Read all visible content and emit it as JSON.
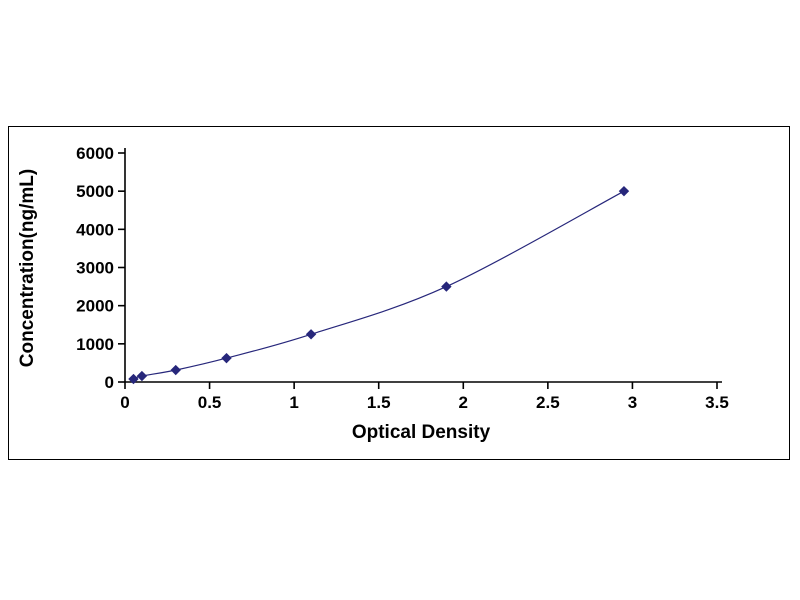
{
  "chart_data": {
    "type": "line",
    "title": "",
    "xlabel": "Optical Density",
    "ylabel": "Concentration(ng/mL)",
    "x": [
      0.05,
      0.1,
      0.3,
      0.6,
      1.1,
      1.9,
      2.95
    ],
    "y": [
      78,
      156,
      313,
      625,
      1250,
      2500,
      5000
    ],
    "xlim": [
      0,
      3.5
    ],
    "ylim": [
      0,
      6000
    ],
    "xticks": [
      0,
      0.5,
      1,
      1.5,
      2,
      2.5,
      3,
      3.5
    ],
    "xtick_labels": [
      "0",
      "0.5",
      "1",
      "1.5",
      "2",
      "2.5",
      "3",
      "3.5"
    ],
    "yticks": [
      0,
      1000,
      2000,
      3000,
      4000,
      5000,
      6000
    ],
    "ytick_labels": [
      "0",
      "1000",
      "2000",
      "3000",
      "4000",
      "5000",
      "6000"
    ],
    "grid": false,
    "legend": false,
    "marker": "diamond",
    "series_color": "#27277b",
    "axis_color": "#000000",
    "frame_border_color": "#000000",
    "background_color": "#ffffff"
  }
}
